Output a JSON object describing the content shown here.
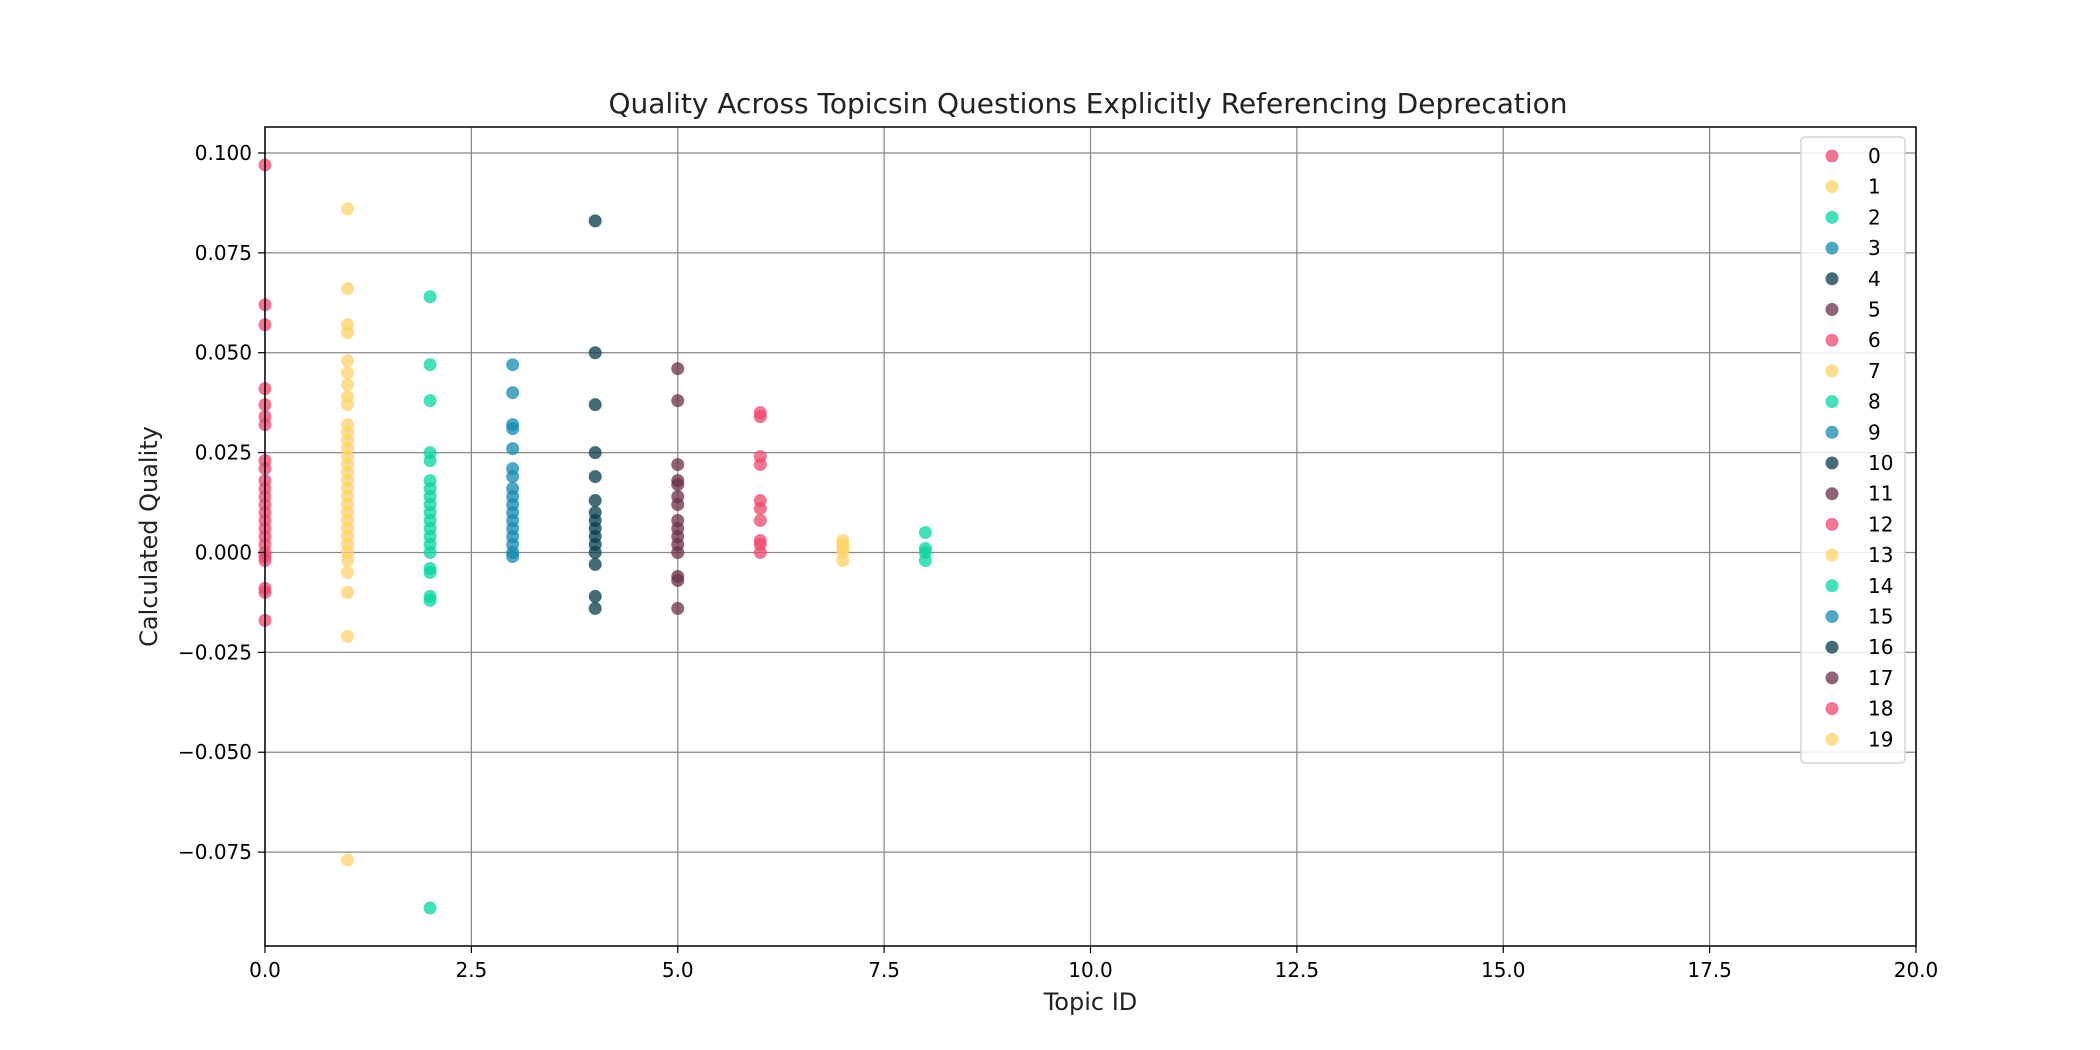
{
  "chart_data": {
    "type": "scatter",
    "title": "Quality Across Topicsin Questions Explicitly Referencing Deprecation",
    "xlabel": "Topic ID",
    "ylabel": "Calculated Quality",
    "xlim": [
      0,
      20
    ],
    "ylim": [
      -0.0985,
      0.1065
    ],
    "x_ticks": [
      0.0,
      2.5,
      5.0,
      7.5,
      10.0,
      12.5,
      15.0,
      17.5,
      20.0
    ],
    "x_tick_labels": [
      "0.0",
      "2.5",
      "5.0",
      "7.5",
      "10.0",
      "12.5",
      "15.0",
      "17.5",
      "20.0"
    ],
    "y_ticks": [
      -0.075,
      -0.05,
      -0.025,
      0.0,
      0.025,
      0.05,
      0.075,
      0.1
    ],
    "y_tick_labels": [
      "−0.075",
      "−0.050",
      "−0.025",
      "0.000",
      "0.025",
      "0.050",
      "0.075",
      "0.100"
    ],
    "grid": true,
    "legend_position": "top-right",
    "palette": [
      "#ef476f",
      "#ffd166",
      "#06d6a0",
      "#118ab2",
      "#073b4c",
      "#6b2f4a"
    ],
    "series": [
      {
        "name": "0",
        "color": "#ef476f",
        "points": [
          [
            0,
            0.097
          ],
          [
            0,
            0.062
          ],
          [
            0,
            0.057
          ],
          [
            0,
            0.041
          ],
          [
            0,
            0.037
          ],
          [
            0,
            0.034
          ],
          [
            0,
            0.032
          ],
          [
            0,
            0.023
          ],
          [
            0,
            0.021
          ],
          [
            0,
            0.018
          ],
          [
            0,
            0.016
          ],
          [
            0,
            0.014
          ],
          [
            0,
            0.012
          ],
          [
            0,
            0.01
          ],
          [
            0,
            0.008
          ],
          [
            0,
            0.006
          ],
          [
            0,
            0.004
          ],
          [
            0,
            0.002
          ],
          [
            0,
            0.0
          ],
          [
            0,
            -0.001
          ],
          [
            0,
            -0.002
          ],
          [
            0,
            -0.009
          ],
          [
            0,
            -0.01
          ],
          [
            0,
            -0.017
          ]
        ]
      },
      {
        "name": "1",
        "color": "#ffd166",
        "points": [
          [
            1,
            0.086
          ],
          [
            1,
            0.066
          ],
          [
            1,
            0.057
          ],
          [
            1,
            0.055
          ],
          [
            1,
            0.048
          ],
          [
            1,
            0.045
          ],
          [
            1,
            0.042
          ],
          [
            1,
            0.039
          ],
          [
            1,
            0.037
          ],
          [
            1,
            0.032
          ],
          [
            1,
            0.03
          ],
          [
            1,
            0.028
          ],
          [
            1,
            0.026
          ],
          [
            1,
            0.024
          ],
          [
            1,
            0.022
          ],
          [
            1,
            0.02
          ],
          [
            1,
            0.018
          ],
          [
            1,
            0.016
          ],
          [
            1,
            0.014
          ],
          [
            1,
            0.012
          ],
          [
            1,
            0.01
          ],
          [
            1,
            0.008
          ],
          [
            1,
            0.006
          ],
          [
            1,
            0.004
          ],
          [
            1,
            0.002
          ],
          [
            1,
            0.0
          ],
          [
            1,
            -0.002
          ],
          [
            1,
            -0.005
          ],
          [
            1,
            -0.01
          ],
          [
            1,
            -0.021
          ],
          [
            1,
            -0.077
          ]
        ]
      },
      {
        "name": "2",
        "color": "#06d6a0",
        "points": [
          [
            2,
            0.064
          ],
          [
            2,
            0.047
          ],
          [
            2,
            0.038
          ],
          [
            2,
            0.025
          ],
          [
            2,
            0.023
          ],
          [
            2,
            0.018
          ],
          [
            2,
            0.016
          ],
          [
            2,
            0.014
          ],
          [
            2,
            0.012
          ],
          [
            2,
            0.01
          ],
          [
            2,
            0.008
          ],
          [
            2,
            0.006
          ],
          [
            2,
            0.004
          ],
          [
            2,
            0.002
          ],
          [
            2,
            0.0
          ],
          [
            2,
            -0.004
          ],
          [
            2,
            -0.005
          ],
          [
            2,
            -0.011
          ],
          [
            2,
            -0.012
          ],
          [
            2,
            -0.089
          ]
        ]
      },
      {
        "name": "3",
        "color": "#118ab2",
        "points": [
          [
            3,
            0.047
          ],
          [
            3,
            0.04
          ],
          [
            3,
            0.032
          ],
          [
            3,
            0.031
          ],
          [
            3,
            0.026
          ],
          [
            3,
            0.021
          ],
          [
            3,
            0.019
          ],
          [
            3,
            0.016
          ],
          [
            3,
            0.014
          ],
          [
            3,
            0.012
          ],
          [
            3,
            0.01
          ],
          [
            3,
            0.008
          ],
          [
            3,
            0.006
          ],
          [
            3,
            0.004
          ],
          [
            3,
            0.002
          ],
          [
            3,
            0.0
          ],
          [
            3,
            -0.001
          ]
        ]
      },
      {
        "name": "4",
        "color": "#073b4c",
        "points": [
          [
            4,
            0.083
          ],
          [
            4,
            0.05
          ],
          [
            4,
            0.037
          ],
          [
            4,
            0.025
          ],
          [
            4,
            0.019
          ],
          [
            4,
            0.013
          ],
          [
            4,
            0.01
          ],
          [
            4,
            0.008
          ],
          [
            4,
            0.006
          ],
          [
            4,
            0.004
          ],
          [
            4,
            0.002
          ],
          [
            4,
            0.0
          ],
          [
            4,
            -0.003
          ],
          [
            4,
            -0.011
          ],
          [
            4,
            -0.014
          ]
        ]
      },
      {
        "name": "5",
        "color": "#6b2f4a",
        "points": [
          [
            5,
            0.046
          ],
          [
            5,
            0.038
          ],
          [
            5,
            0.022
          ],
          [
            5,
            0.018
          ],
          [
            5,
            0.017
          ],
          [
            5,
            0.014
          ],
          [
            5,
            0.012
          ],
          [
            5,
            0.008
          ],
          [
            5,
            0.006
          ],
          [
            5,
            0.004
          ],
          [
            5,
            0.002
          ],
          [
            5,
            0.0
          ],
          [
            5,
            -0.006
          ],
          [
            5,
            -0.007
          ],
          [
            5,
            -0.014
          ]
        ]
      },
      {
        "name": "6",
        "color": "#ef476f",
        "points": [
          [
            6,
            0.035
          ],
          [
            6,
            0.034
          ],
          [
            6,
            0.024
          ],
          [
            6,
            0.022
          ],
          [
            6,
            0.013
          ],
          [
            6,
            0.011
          ],
          [
            6,
            0.008
          ],
          [
            6,
            0.003
          ],
          [
            6,
            0.002
          ],
          [
            6,
            0.0
          ]
        ]
      },
      {
        "name": "7",
        "color": "#ffd166",
        "points": [
          [
            7,
            0.003
          ],
          [
            7,
            0.002
          ],
          [
            7,
            0.001
          ],
          [
            7,
            0.0
          ],
          [
            7,
            -0.002
          ]
        ]
      },
      {
        "name": "8",
        "color": "#06d6a0",
        "points": [
          [
            8,
            0.005
          ],
          [
            8,
            0.001
          ],
          [
            8,
            0.0
          ],
          [
            8,
            -0.002
          ]
        ]
      },
      {
        "name": "9",
        "color": "#118ab2",
        "points": []
      },
      {
        "name": "10",
        "color": "#073b4c",
        "points": []
      },
      {
        "name": "11",
        "color": "#6b2f4a",
        "points": []
      },
      {
        "name": "12",
        "color": "#ef476f",
        "points": []
      },
      {
        "name": "13",
        "color": "#ffd166",
        "points": []
      },
      {
        "name": "14",
        "color": "#06d6a0",
        "points": []
      },
      {
        "name": "15",
        "color": "#118ab2",
        "points": []
      },
      {
        "name": "16",
        "color": "#073b4c",
        "points": []
      },
      {
        "name": "17",
        "color": "#6b2f4a",
        "points": []
      },
      {
        "name": "18",
        "color": "#ef476f",
        "points": []
      },
      {
        "name": "19",
        "color": "#ffd166",
        "points": []
      }
    ]
  }
}
